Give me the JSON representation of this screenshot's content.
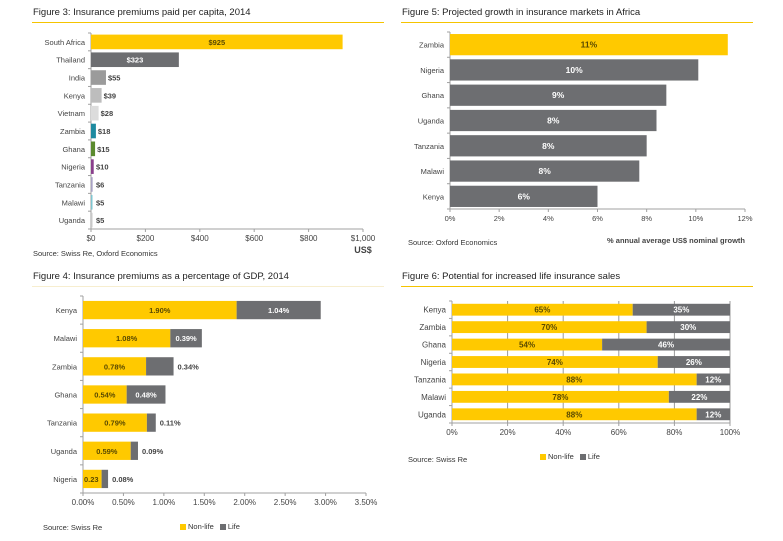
{
  "chart_data": [
    {
      "id": "fig3",
      "type": "bar",
      "orientation": "horizontal",
      "title": "Figure 3: Insurance premiums paid per capita, 2014",
      "categories": [
        "South Africa",
        "Thailand",
        "India",
        "Kenya",
        "Vietnam",
        "Zambia",
        "Ghana",
        "Nigeria",
        "Tanzania",
        "Malawi",
        "Uganda"
      ],
      "values": [
        925,
        323,
        55,
        39,
        28,
        18,
        15,
        10,
        6,
        5,
        5
      ],
      "data_labels": [
        "$925",
        "$323",
        "$55",
        "$39",
        "$28",
        "$18",
        "$15",
        "$10",
        "$6",
        "$5",
        "$5"
      ],
      "colors": [
        "#ffc900",
        "#6d6e71",
        "#9b9b9b",
        "#bdbdbd",
        "#dcdcdc",
        "#1e8aa0",
        "#5a8a2e",
        "#8a3f8c",
        "#a9a2c4",
        "#7fc6d0",
        "#c8c8c8"
      ],
      "xlabel": "US$",
      "xlim": [
        0,
        1000
      ],
      "xticks": [
        "$0",
        "$200",
        "$400",
        "$600",
        "$800",
        "$1,000"
      ],
      "source": "Source: Swiss Re, Oxford Economics"
    },
    {
      "id": "fig5",
      "type": "bar",
      "orientation": "horizontal",
      "title": "Figure 5: Projected growth in insurance markets in Africa",
      "categories": [
        "Zambia",
        "Nigeria",
        "Ghana",
        "Uganda",
        "Tanzania",
        "Malawi",
        "Kenya"
      ],
      "values": [
        11.3,
        10.1,
        8.8,
        8.4,
        8.0,
        7.7,
        6.0
      ],
      "data_labels": [
        "11%",
        "10%",
        "9%",
        "8%",
        "8%",
        "8%",
        "6%"
      ],
      "colors": [
        "#ffc900",
        "#6d6e71",
        "#6d6e71",
        "#6d6e71",
        "#6d6e71",
        "#6d6e71",
        "#6d6e71"
      ],
      "xlabel": "% annual average US$ nominal growth",
      "xlim": [
        0,
        12
      ],
      "xticks": [
        "0%",
        "2%",
        "4%",
        "6%",
        "8%",
        "10%",
        "12%"
      ],
      "source": "Source: Oxford Economics"
    },
    {
      "id": "fig4",
      "type": "bar",
      "orientation": "horizontal",
      "stacked": true,
      "title": "Figure 4: Insurance premiums as a percentage of GDP, 2014",
      "categories": [
        "Kenya",
        "Malawi",
        "Zambia",
        "Ghana",
        "Tanzania",
        "Uganda",
        "Nigeria"
      ],
      "series": [
        {
          "name": "Non-life",
          "color": "#ffc900",
          "values": [
            1.9,
            1.08,
            0.78,
            0.54,
            0.79,
            0.59,
            0.23
          ],
          "labels": [
            "1.90%",
            "1.08%",
            "0.78%",
            "0.54%",
            "0.79%",
            "0.59%",
            "0.23"
          ]
        },
        {
          "name": "Life",
          "color": "#6d6e71",
          "values": [
            1.04,
            0.39,
            0.34,
            0.48,
            0.11,
            0.09,
            0.08
          ],
          "labels": [
            "1.04%",
            "0.39%",
            "0.34%",
            "0.48%",
            "0.11%",
            "0.09%",
            "0.08%"
          ]
        }
      ],
      "xlim": [
        0,
        3.5
      ],
      "xticks": [
        "0.00%",
        "0.50%",
        "1.00%",
        "1.50%",
        "2.00%",
        "2.50%",
        "3.00%",
        "3.50%"
      ],
      "legend": "bottom",
      "source": "Source: Swiss Re"
    },
    {
      "id": "fig6",
      "type": "bar",
      "orientation": "horizontal",
      "stacked": true,
      "title": "Figure 6: Potential for increased life insurance sales",
      "categories": [
        "Kenya",
        "Zambia",
        "Ghana",
        "Nigeria",
        "Tanzania",
        "Malawi",
        "Uganda"
      ],
      "series": [
        {
          "name": "Non-life",
          "color": "#ffc900",
          "values": [
            65,
            70,
            54,
            74,
            88,
            78,
            88
          ],
          "labels": [
            "65%",
            "70%",
            "54%",
            "74%",
            "88%",
            "78%",
            "88%"
          ]
        },
        {
          "name": "Life",
          "color": "#6d6e71",
          "values": [
            35,
            30,
            46,
            26,
            12,
            22,
            12
          ],
          "labels": [
            "35%",
            "30%",
            "46%",
            "26%",
            "12%",
            "22%",
            "12%"
          ]
        }
      ],
      "xlim": [
        0,
        100
      ],
      "xticks": [
        "0%",
        "20%",
        "40%",
        "60%",
        "80%",
        "100%"
      ],
      "grid": true,
      "legend": "bottom",
      "source": "Source: Swiss Re"
    }
  ]
}
